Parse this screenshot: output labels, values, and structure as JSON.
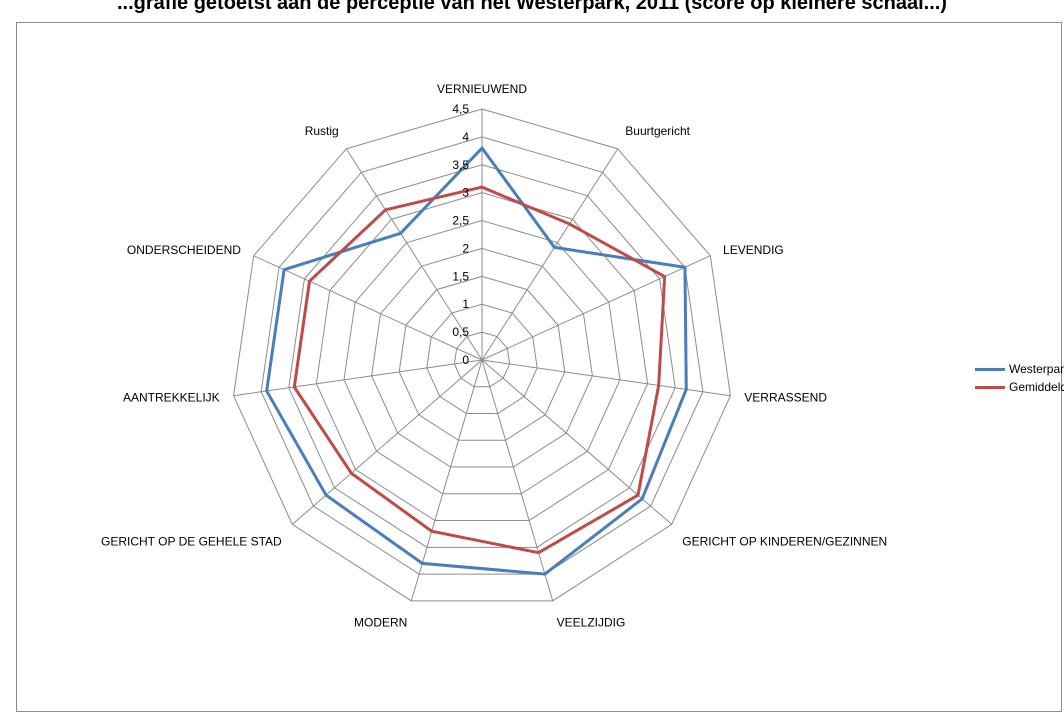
{
  "chart_data": {
    "type": "radar",
    "title": "...grafie getoetst aan de perceptie van het Westerpark, 2011 (score op kleinere schaal...)",
    "categories": [
      "VERNIEUWEND",
      "Buurtgericht",
      "LEVENDIG",
      "VERRASSEND",
      "GERICHT OP KINDEREN/GEZINNEN",
      "VEELZIJDIG",
      "MODERN",
      "GERICHT OP DE GEHELE STAD",
      "AANTREKKELIJK",
      "ONDERSCHEIDEND",
      "Rustig"
    ],
    "radial_ticks": [
      "0",
      "0,5",
      "1",
      "1,5",
      "2",
      "2,5",
      "3",
      "3,5",
      "4",
      "4,5"
    ],
    "rmax": 4.5,
    "series": [
      {
        "name": "Westerpark",
        "color": "#4a7ebb",
        "values": [
          3.8,
          2.4,
          4.0,
          3.7,
          3.8,
          4.0,
          3.8,
          3.7,
          3.9,
          3.9,
          2.7
        ]
      },
      {
        "name": "Gemiddeld",
        "color": "#be4b48",
        "values": [
          3.1,
          2.9,
          3.6,
          3.2,
          3.7,
          3.6,
          3.2,
          3.1,
          3.4,
          3.4,
          3.2
        ]
      }
    ],
    "legend_position": "right"
  }
}
